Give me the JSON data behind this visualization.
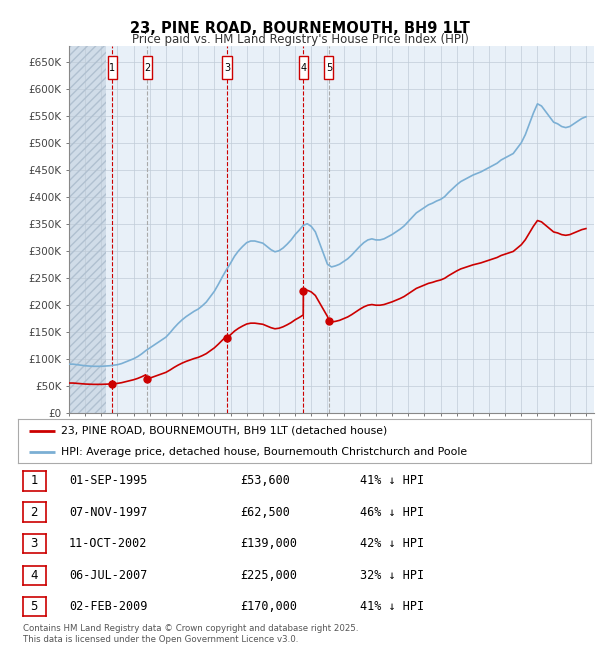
{
  "title": "23, PINE ROAD, BOURNEMOUTH, BH9 1LT",
  "subtitle": "Price paid vs. HM Land Registry's House Price Index (HPI)",
  "ylim": [
    0,
    680000
  ],
  "yticks": [
    0,
    50000,
    100000,
    150000,
    200000,
    250000,
    300000,
    350000,
    400000,
    450000,
    500000,
    550000,
    600000,
    650000
  ],
  "ytick_labels": [
    "£0",
    "£50K",
    "£100K",
    "£150K",
    "£200K",
    "£250K",
    "£300K",
    "£350K",
    "£400K",
    "£450K",
    "£500K",
    "£550K",
    "£600K",
    "£650K"
  ],
  "sale_dates_num": [
    1995.67,
    1997.85,
    2002.78,
    2007.51,
    2009.09
  ],
  "sale_prices": [
    53600,
    62500,
    139000,
    225000,
    170000
  ],
  "sale_labels": [
    "1",
    "2",
    "3",
    "4",
    "5"
  ],
  "sale_vline_style": [
    "red_dashed",
    "gray_dashed",
    "red_dashed",
    "red_dashed",
    "gray_dashed"
  ],
  "legend_property": "23, PINE ROAD, BOURNEMOUTH, BH9 1LT (detached house)",
  "legend_hpi": "HPI: Average price, detached house, Bournemouth Christchurch and Poole",
  "table_rows": [
    [
      "1",
      "01-SEP-1995",
      "£53,600",
      "41% ↓ HPI"
    ],
    [
      "2",
      "07-NOV-1997",
      "£62,500",
      "46% ↓ HPI"
    ],
    [
      "3",
      "11-OCT-2002",
      "£139,000",
      "42% ↓ HPI"
    ],
    [
      "4",
      "06-JUL-2007",
      "£225,000",
      "32% ↓ HPI"
    ],
    [
      "5",
      "02-FEB-2009",
      "£170,000",
      "41% ↓ HPI"
    ]
  ],
  "footnote": "Contains HM Land Registry data © Crown copyright and database right 2025.\nThis data is licensed under the Open Government Licence v3.0.",
  "property_line_color": "#cc0000",
  "hpi_line_color": "#7bafd4",
  "vline_red_color": "#cc0000",
  "vline_gray_color": "#aaaaaa",
  "box_color": "#cc0000",
  "chart_bg_color": "#e8f0f8",
  "background_color": "#ffffff",
  "grid_color": "#c0ccd8",
  "hatch_color": "#b0c4d8",
  "hpi_years": [
    1993.0,
    1993.25,
    1993.5,
    1993.75,
    1994.0,
    1994.25,
    1994.5,
    1994.75,
    1995.0,
    1995.25,
    1995.5,
    1995.75,
    1996.0,
    1996.25,
    1996.5,
    1996.75,
    1997.0,
    1997.25,
    1997.5,
    1997.75,
    1998.0,
    1998.25,
    1998.5,
    1998.75,
    1999.0,
    1999.25,
    1999.5,
    1999.75,
    2000.0,
    2000.25,
    2000.5,
    2000.75,
    2001.0,
    2001.25,
    2001.5,
    2001.75,
    2002.0,
    2002.25,
    2002.5,
    2002.75,
    2003.0,
    2003.25,
    2003.5,
    2003.75,
    2004.0,
    2004.25,
    2004.5,
    2004.75,
    2005.0,
    2005.25,
    2005.5,
    2005.75,
    2006.0,
    2006.25,
    2006.5,
    2006.75,
    2007.0,
    2007.25,
    2007.5,
    2007.75,
    2008.0,
    2008.25,
    2008.5,
    2008.75,
    2009.0,
    2009.25,
    2009.5,
    2009.75,
    2010.0,
    2010.25,
    2010.5,
    2010.75,
    2011.0,
    2011.25,
    2011.5,
    2011.75,
    2012.0,
    2012.25,
    2012.5,
    2012.75,
    2013.0,
    2013.25,
    2013.5,
    2013.75,
    2014.0,
    2014.25,
    2014.5,
    2014.75,
    2015.0,
    2015.25,
    2015.5,
    2015.75,
    2016.0,
    2016.25,
    2016.5,
    2016.75,
    2017.0,
    2017.25,
    2017.5,
    2017.75,
    2018.0,
    2018.25,
    2018.5,
    2018.75,
    2019.0,
    2019.25,
    2019.5,
    2019.75,
    2020.0,
    2020.25,
    2020.5,
    2020.75,
    2021.0,
    2021.25,
    2021.5,
    2021.75,
    2022.0,
    2022.25,
    2022.5,
    2022.75,
    2023.0,
    2023.25,
    2023.5,
    2023.75,
    2024.0,
    2024.25,
    2024.5,
    2024.75,
    2025.0
  ],
  "hpi_values": [
    90000,
    90000,
    89000,
    88000,
    87000,
    86500,
    86000,
    86000,
    86000,
    86500,
    87000,
    88000,
    89000,
    91000,
    94000,
    97000,
    100000,
    104000,
    109000,
    115000,
    120000,
    125000,
    130000,
    135000,
    140000,
    148000,
    157000,
    165000,
    172000,
    178000,
    183000,
    188000,
    192000,
    198000,
    205000,
    215000,
    225000,
    238000,
    252000,
    265000,
    277000,
    290000,
    300000,
    308000,
    315000,
    318000,
    318000,
    316000,
    314000,
    308000,
    302000,
    298000,
    300000,
    305000,
    312000,
    320000,
    330000,
    338000,
    347000,
    350000,
    345000,
    335000,
    315000,
    295000,
    275000,
    270000,
    272000,
    275000,
    280000,
    285000,
    292000,
    300000,
    308000,
    315000,
    320000,
    322000,
    320000,
    320000,
    322000,
    326000,
    330000,
    335000,
    340000,
    346000,
    354000,
    362000,
    370000,
    375000,
    380000,
    385000,
    388000,
    392000,
    395000,
    400000,
    408000,
    415000,
    422000,
    428000,
    432000,
    436000,
    440000,
    443000,
    446000,
    450000,
    454000,
    458000,
    462000,
    468000,
    472000,
    476000,
    480000,
    490000,
    500000,
    515000,
    535000,
    555000,
    572000,
    568000,
    558000,
    548000,
    538000,
    535000,
    530000,
    528000,
    530000,
    535000,
    540000,
    545000,
    548000
  ]
}
